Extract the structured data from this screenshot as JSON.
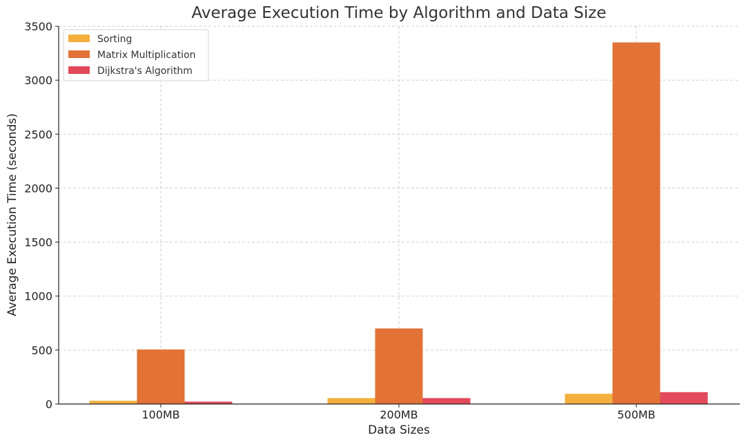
{
  "chart_data": {
    "type": "bar",
    "title": "Average Execution Time by Algorithm and Data Size",
    "xlabel": "Data Sizes",
    "ylabel": "Average Execution Time (seconds)",
    "categories": [
      "100MB",
      "200MB",
      "500MB"
    ],
    "ylim": [
      0,
      3500
    ],
    "yticks": [
      0,
      500,
      1000,
      1500,
      2000,
      2500,
      3000,
      3500
    ],
    "grid": true,
    "legend_position": "top-left",
    "series": [
      {
        "name": "Sorting",
        "color": "#f4b03e",
        "values": [
          30,
          55,
          95
        ]
      },
      {
        "name": "Matrix Multiplication",
        "color": "#e27236",
        "values": [
          505,
          700,
          3350
        ]
      },
      {
        "name": "Dijkstra's Algorithm",
        "color": "#e2495a",
        "values": [
          22,
          55,
          110
        ]
      }
    ]
  }
}
